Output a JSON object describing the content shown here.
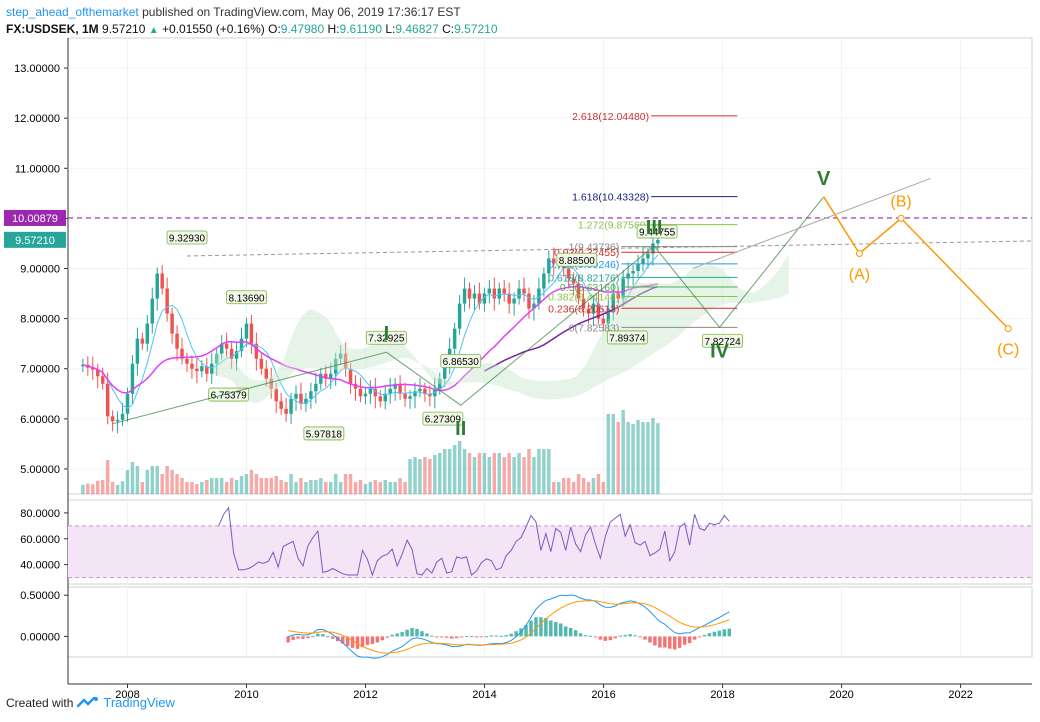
{
  "header": {
    "author": "step_ahead_ofthemarket",
    "published": "published on TradingView.com, May 06, 2019 17:36:17 EST",
    "symbol": "FX:USDSEK, 1M",
    "last": "9.57210",
    "change": "+0.01550 (+0.16%)",
    "open_label": "O:",
    "open": "9.47980",
    "high_label": "H:",
    "high": "9.61190",
    "low_label": "L:",
    "low": "9.46827",
    "close_label": "C:",
    "close": "9.57210"
  },
  "footer": {
    "created_with": "Created with",
    "brand": "TradingView"
  },
  "colors": {
    "up": "#26a69a",
    "down": "#ef5350",
    "ma_pink": "#e040fb",
    "ma_purple": "#7b1fa2",
    "cloud_green": "#c8e6c9",
    "cloud_red": "#ffcdd2",
    "rsi": "#7e57c2",
    "rsi_band": "#f3e5f5",
    "macd": "#2196f3",
    "signal": "#ff9800",
    "wave": "#2e7d32",
    "corrective": "#ff9800",
    "target_line": "#9c27b0"
  },
  "price_axis": {
    "ticks": [
      "13.00000",
      "12.00000",
      "11.00000",
      "10.00000",
      "9.00000",
      "8.00000",
      "7.00000",
      "6.00000",
      "5.00000"
    ]
  },
  "price_badges": [
    {
      "text": "10.00879",
      "color": "#9c27b0"
    },
    {
      "text": "9.57210",
      "color": "#26a69a"
    }
  ],
  "rsi_axis": {
    "ticks": [
      "80.0000",
      "60.0000",
      "40.0000"
    ]
  },
  "macd_axis": {
    "ticks": [
      "0.50000",
      "0.00000"
    ]
  },
  "time_axis": {
    "ticks": [
      "2008",
      "2010",
      "2012",
      "2014",
      "2016",
      "2018",
      "2020",
      "2022"
    ]
  },
  "pivot_labels": [
    "9.32930",
    "8.13690",
    "6.75379",
    "5.97818",
    "7.32925",
    "6.86530",
    "6.27309",
    "9.44755",
    "8.88500",
    "7.89374",
    "7.82724"
  ],
  "fib_levels": [
    {
      "label": "2.618(12.04480)",
      "color": "#d32f2f"
    },
    {
      "label": "1.618(10.43328)",
      "color": "#1a237e"
    },
    {
      "label": "1.272(9.87569)",
      "color": "#8bc34a"
    },
    {
      "label": "1(9.43736)",
      "color": "#888888"
    },
    {
      "label": "0.93(9.32455)",
      "color": "#d32f2f"
    },
    {
      "label": "0.786(9.09246)",
      "color": "#2196f3"
    },
    {
      "label": "0.618(8.82176)",
      "color": "#26a69a"
    },
    {
      "label": "0.5(8.63160)",
      "color": "#4caf50"
    },
    {
      "label": "0.382(8.44144)",
      "color": "#8bc34a"
    },
    {
      "label": "0.236(8.20613)",
      "color": "#d32f2f"
    },
    {
      "label": "0(7.82583)",
      "color": "#888888"
    }
  ],
  "wave_labels": [
    "I",
    "II",
    "III",
    "IV",
    "V"
  ],
  "corrective_labels": [
    "(A)",
    "(B)",
    "(C)"
  ],
  "chart_data": {
    "type": "candlestick",
    "interval": "1M",
    "x_range": [
      2007.0,
      2023.2
    ],
    "y_range": [
      4.5,
      13.6
    ],
    "candle_open_start": 7.05,
    "candle_x_start": 2007.25,
    "candle_step_years": 0.0833,
    "closes": [
      7.08,
      7.02,
      6.98,
      6.85,
      6.7,
      6.05,
      5.95,
      5.98,
      6.1,
      6.5,
      7.1,
      7.6,
      7.5,
      7.9,
      8.4,
      8.9,
      8.6,
      8.1,
      7.7,
      7.4,
      7.2,
      7.1,
      7.0,
      6.95,
      7.05,
      6.9,
      7.1,
      7.3,
      7.5,
      7.4,
      7.2,
      7.35,
      7.6,
      7.9,
      7.5,
      7.2,
      7.0,
      6.8,
      6.6,
      6.35,
      6.2,
      6.1,
      6.4,
      6.5,
      6.3,
      6.4,
      6.55,
      6.7,
      6.9,
      6.8,
      6.9,
      7.2,
      7.3,
      7.0,
      6.7,
      6.6,
      6.45,
      6.5,
      6.6,
      6.45,
      6.35,
      6.5,
      6.6,
      6.7,
      6.5,
      6.4,
      6.45,
      6.55,
      6.6,
      6.5,
      6.45,
      6.6,
      6.8,
      7.1,
      7.4,
      7.8,
      8.3,
      8.6,
      8.4,
      8.5,
      8.3,
      8.5,
      8.6,
      8.4,
      8.6,
      8.5,
      8.3,
      8.4,
      8.6,
      8.5,
      8.2,
      8.3,
      8.6,
      8.9,
      9.2,
      9.1,
      9.2,
      9.0,
      8.8,
      8.7,
      8.4,
      8.2,
      8.1,
      8.3,
      8.0,
      7.9,
      8.2,
      8.5,
      8.4,
      8.8,
      8.9,
      8.95,
      9.1,
      9.2,
      9.3,
      9.5,
      9.57
    ],
    "volume_visible": true,
    "indicators": {
      "rsi": {
        "range": [
          25,
          90
        ],
        "band": [
          30,
          70
        ]
      },
      "macd": {
        "range": [
          -0.25,
          0.6
        ]
      }
    },
    "fib_extension": {
      "anchor_low": 7.82583,
      "anchor_high": 9.43736,
      "target_levels": [
        12.0448,
        10.43328,
        9.87569
      ]
    },
    "target_line": 10.00879,
    "elliott_waves": {
      "impulse": [
        {
          "label": "I",
          "x": 2012.35,
          "y": 7.32925
        },
        {
          "label": "II",
          "x": 2013.6,
          "y": 6.27309
        },
        {
          "label": "III",
          "x": 2016.85,
          "y": 9.44755
        },
        {
          "label": "IV",
          "x": 2017.95,
          "y": 7.82724
        },
        {
          "label": "V",
          "x": 2019.7,
          "y": 10.43
        }
      ],
      "corrective": [
        {
          "label": "(A)",
          "x": 2020.3,
          "y": 9.3
        },
        {
          "label": "(B)",
          "x": 2021.0,
          "y": 10.0
        },
        {
          "label": "(C)",
          "x": 2022.8,
          "y": 7.8
        }
      ]
    }
  }
}
